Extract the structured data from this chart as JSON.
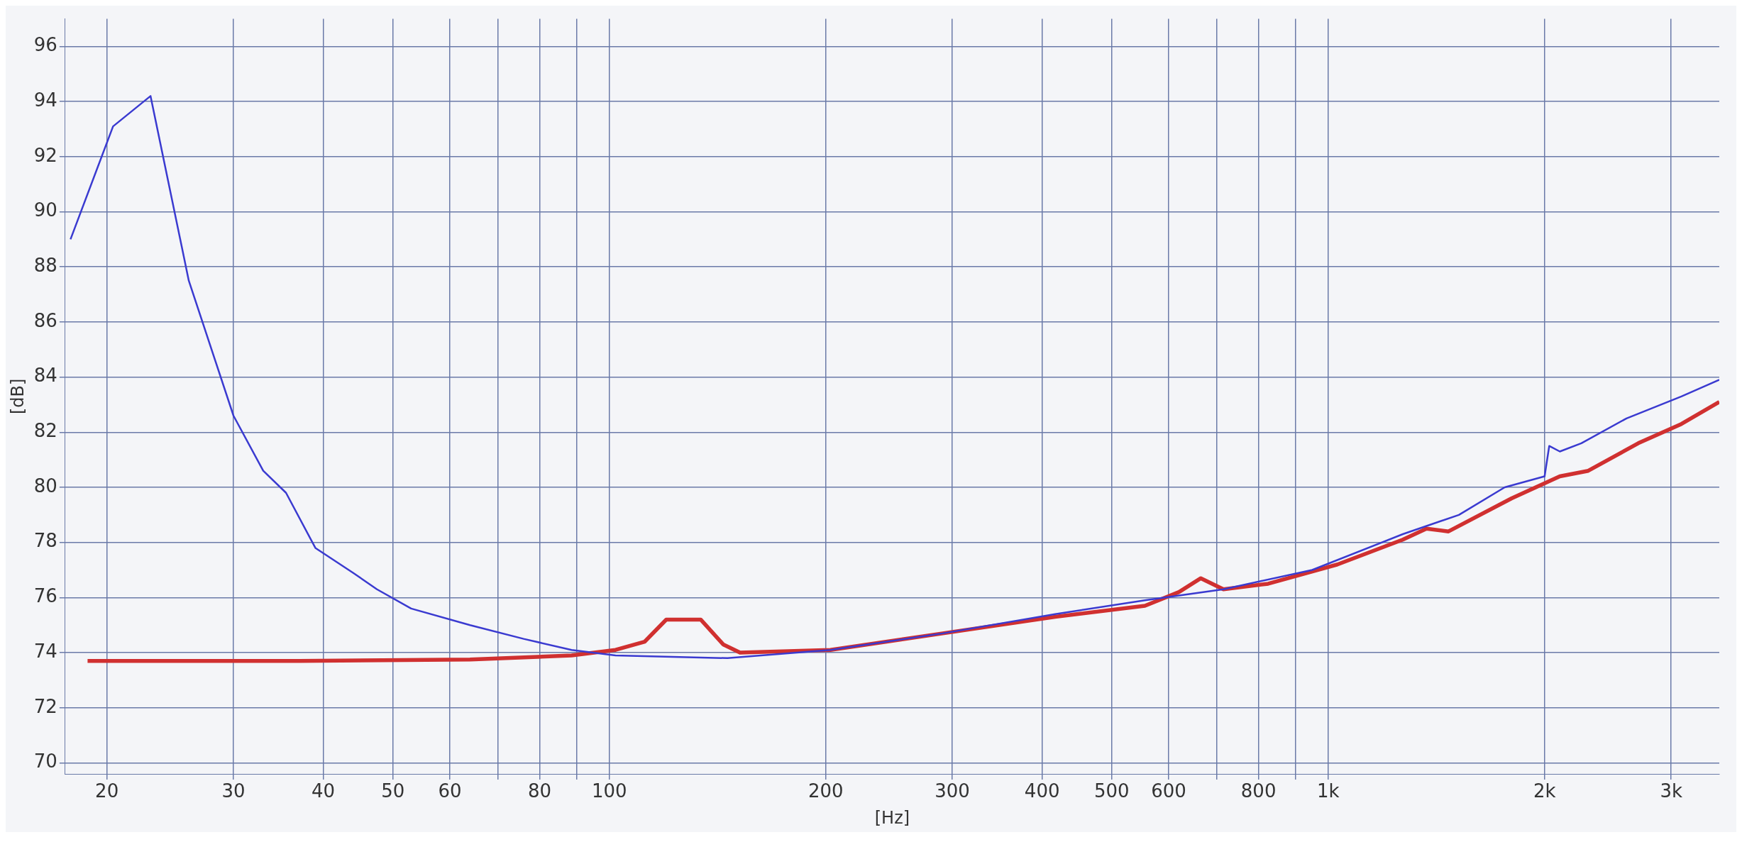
{
  "chart_data": {
    "type": "line",
    "xlabel": "[Hz]",
    "ylabel": "[dB]",
    "log": "x",
    "grid": true,
    "marker": "none",
    "line_style": "solid",
    "xlim": [
      17.5,
      3500
    ],
    "ylim": [
      69.6,
      97
    ],
    "xticks": [
      20,
      30,
      40,
      50,
      60,
      {
        "value": 70,
        "label": null
      },
      80,
      {
        "value": 90,
        "label": null
      },
      100,
      200,
      300,
      400,
      500,
      600,
      {
        "value": 700,
        "label": null
      },
      800,
      {
        "value": 900,
        "label": null
      },
      {
        "value": 1000,
        "label": "1k"
      },
      {
        "value": 2000,
        "label": "2k"
      },
      {
        "value": 3000,
        "label": "3k"
      }
    ],
    "yticks": [
      70,
      72,
      74,
      76,
      78,
      80,
      82,
      84,
      86,
      88,
      90,
      92,
      94,
      96
    ],
    "series": [
      {
        "color": "#3a3ad0",
        "x": [
          17.8,
          20.4,
          23,
          26,
          30,
          33,
          35.5,
          39,
          44,
          47.5,
          53,
          64,
          76,
          88.6,
          102,
          146,
          203,
          291,
          417,
          556,
          715,
          950,
          1270,
          1520,
          1760,
          2000,
          2030,
          2100,
          2250,
          2600,
          3100,
          3500
        ],
        "values": [
          89.0,
          93.1,
          94.2,
          87.5,
          82.6,
          80.6,
          79.8,
          77.8,
          76.9,
          76.3,
          75.6,
          75.0,
          74.5,
          74.1,
          73.9,
          73.8,
          74.1,
          74.7,
          75.4,
          75.9,
          76.3,
          77.0,
          78.3,
          79.0,
          80.0,
          80.4,
          81.5,
          81.3,
          81.6,
          82.5,
          83.3,
          83.9
        ]
      },
      {
        "color": "#d03030",
        "x": [
          18.8,
          37,
          64,
          88.6,
          102,
          112,
          120,
          134,
          144,
          152,
          203,
          291,
          417,
          556,
          620,
          665,
          715,
          825,
          1030,
          1270,
          1370,
          1470,
          1800,
          2100,
          2300,
          2700,
          3100,
          3500
        ],
        "values": [
          73.7,
          73.7,
          73.75,
          73.9,
          74.1,
          74.4,
          75.2,
          75.2,
          74.3,
          74.0,
          74.1,
          74.7,
          75.3,
          75.7,
          76.2,
          76.7,
          76.3,
          76.5,
          77.2,
          78.1,
          78.5,
          78.4,
          79.6,
          80.4,
          80.6,
          81.6,
          82.3,
          83.1
        ]
      }
    ]
  }
}
